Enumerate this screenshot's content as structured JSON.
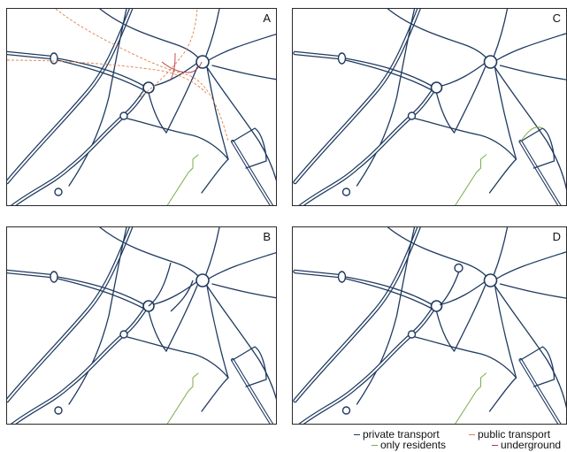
{
  "panels": {
    "A": {
      "label": "A"
    },
    "B": {
      "label": "B"
    },
    "C": {
      "label": "C"
    },
    "D": {
      "label": "D"
    }
  },
  "legend": {
    "private_transport": {
      "label": "private transport",
      "color": "#1f3a5f"
    },
    "public_transport": {
      "label": "public transport",
      "color": "#e0824a"
    },
    "only_residents": {
      "label": "only residents",
      "color": "#7cab4b"
    },
    "underground": {
      "label": "underground",
      "color": "#b8394a"
    }
  }
}
